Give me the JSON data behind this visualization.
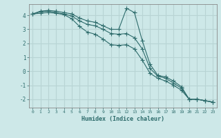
{
  "x": [
    0,
    1,
    2,
    3,
    4,
    5,
    6,
    7,
    8,
    9,
    10,
    11,
    12,
    13,
    14,
    15,
    16,
    17,
    18,
    19,
    20,
    21,
    22,
    23
  ],
  "line1": [
    4.1,
    4.3,
    4.35,
    4.3,
    4.2,
    4.1,
    3.8,
    3.6,
    3.5,
    3.25,
    3.0,
    3.0,
    4.5,
    4.2,
    2.2,
    0.5,
    -0.3,
    -0.4,
    -0.7,
    -1.1,
    -2.0,
    -2.0,
    -2.1,
    -2.2
  ],
  "line2": [
    4.1,
    4.25,
    4.3,
    4.2,
    4.1,
    3.95,
    3.6,
    3.35,
    3.25,
    3.0,
    2.7,
    2.65,
    2.7,
    2.4,
    1.6,
    0.2,
    -0.35,
    -0.5,
    -0.85,
    -1.2,
    -2.0,
    -2.0,
    -2.1,
    -2.2
  ],
  "line3": [
    4.1,
    4.15,
    4.2,
    4.15,
    4.05,
    3.75,
    3.2,
    2.8,
    2.65,
    2.3,
    1.9,
    1.85,
    1.9,
    1.6,
    0.8,
    -0.15,
    -0.5,
    -0.7,
    -1.0,
    -1.35,
    -2.0,
    -2.0,
    -2.1,
    -2.2
  ],
  "bg_color": "#cde8e8",
  "grid_color": "#b8d4d4",
  "line_color": "#2d6b6b",
  "xlabel": "Humidex (Indice chaleur)",
  "xlim": [
    -0.5,
    23.5
  ],
  "ylim": [
    -2.6,
    4.8
  ],
  "yticks": [
    -2,
    -1,
    0,
    1,
    2,
    3,
    4
  ],
  "xticks": [
    0,
    1,
    2,
    3,
    4,
    5,
    6,
    7,
    8,
    9,
    10,
    11,
    12,
    13,
    14,
    15,
    16,
    17,
    18,
    19,
    20,
    21,
    22,
    23
  ]
}
